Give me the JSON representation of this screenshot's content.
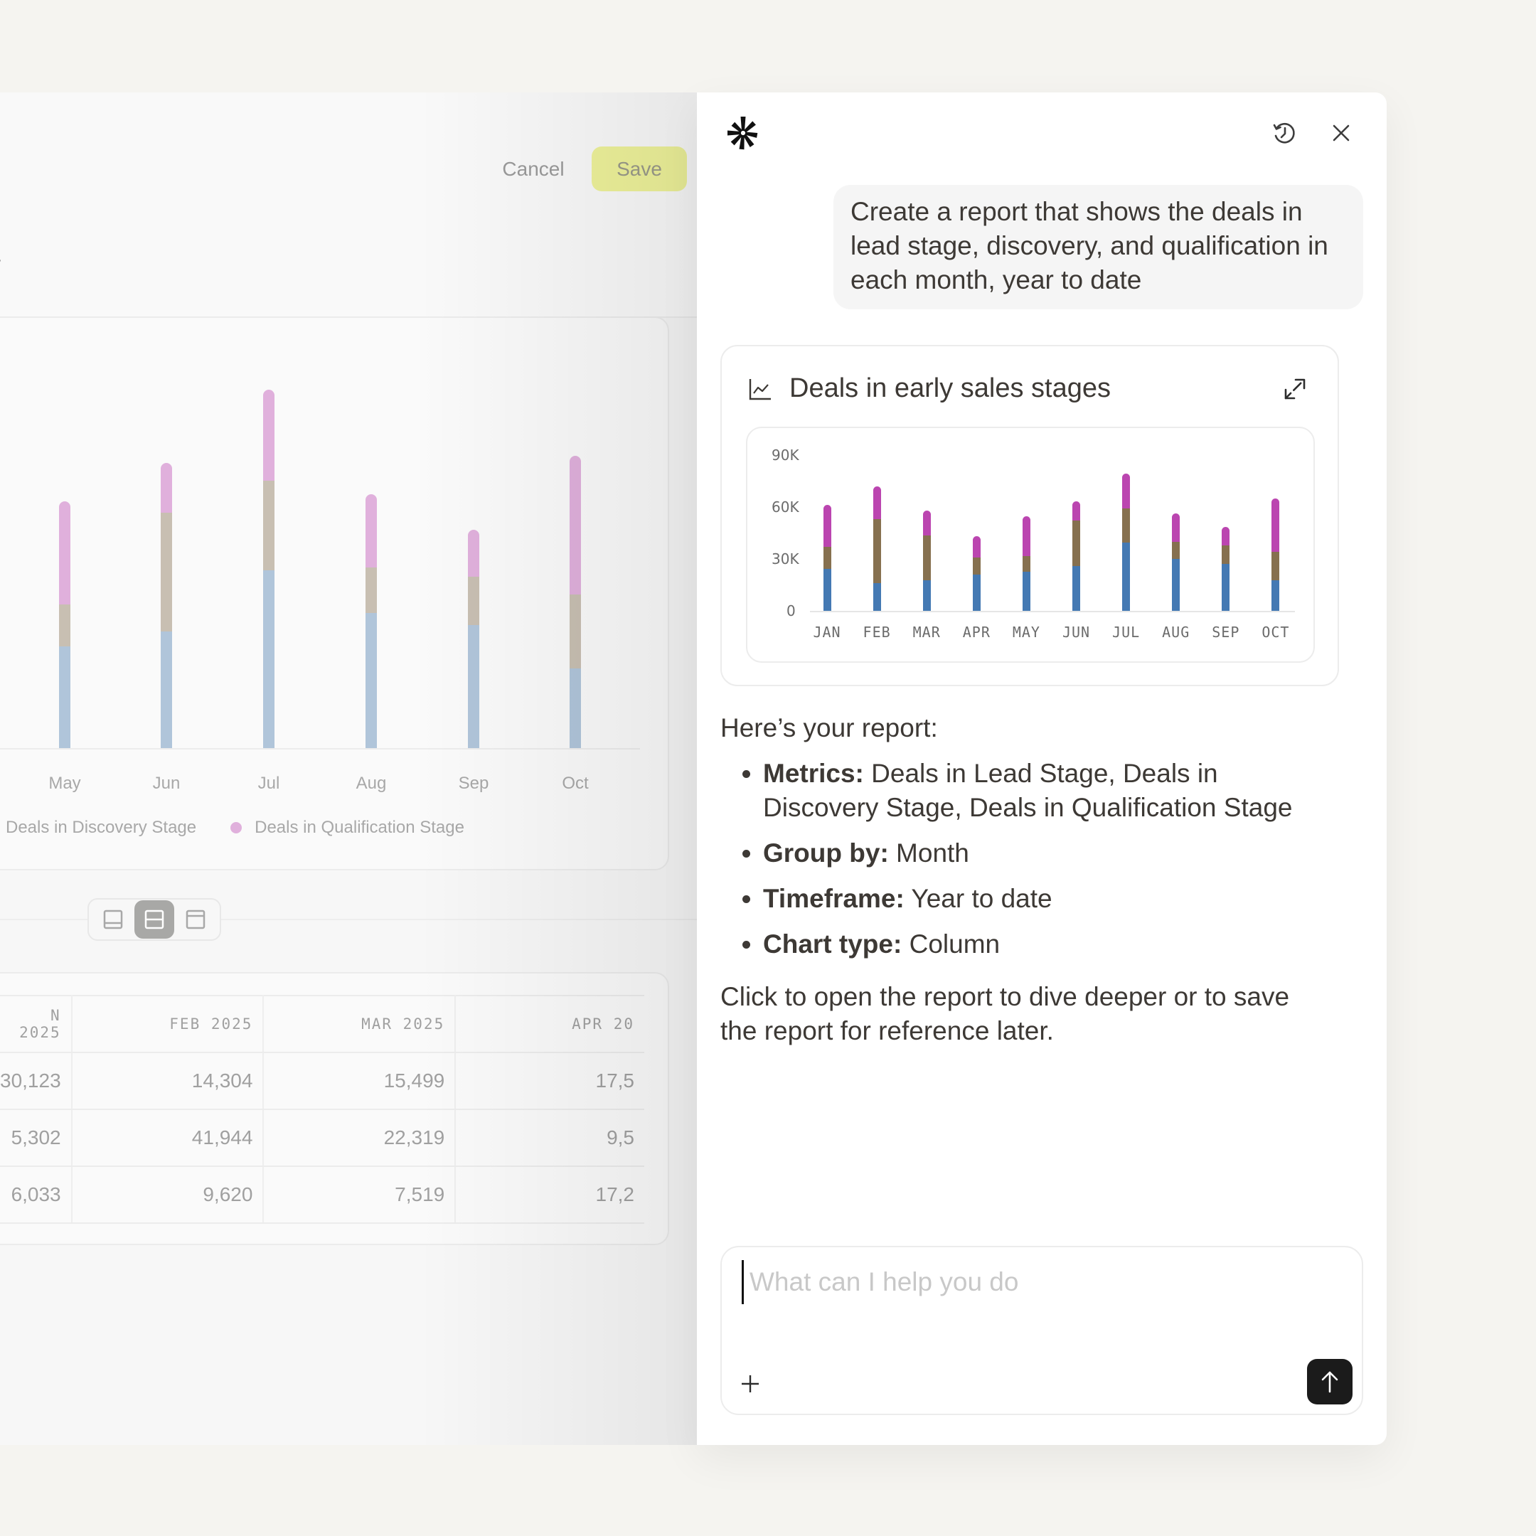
{
  "background_app": {
    "header": {
      "cancel_label": "Cancel",
      "save_label": "Save",
      "save_color": "#eef29a"
    },
    "filter_label_partial": "r",
    "chart": {
      "months": [
        "May",
        "Jun",
        "Jul",
        "Aug",
        "Sep",
        "Oct"
      ],
      "legend": [
        {
          "label": "Deals in Discovery Stage",
          "color": "#c7beb1"
        },
        {
          "label": "Deals in Qualification Stage",
          "color": "#e0b0dc"
        }
      ]
    },
    "layout_toggle": {
      "options": [
        "layout-bottom-panel",
        "layout-split",
        "layout-top-panel"
      ],
      "active_index": 1
    },
    "table": {
      "columns": [
        "N 2025",
        "FEB 2025",
        "MAR 2025",
        "APR 20"
      ],
      "rows": [
        [
          "30,123",
          "14,304",
          "15,499",
          "17,5"
        ],
        [
          "5,302",
          "41,944",
          "22,319",
          "9,5"
        ],
        [
          "6,033",
          "9,620",
          "7,519",
          "17,2"
        ]
      ]
    }
  },
  "assistant": {
    "user_message": "Create a report that shows the deals in lead stage, discovery, and qualification in each month, year to date",
    "report_card": {
      "title": "Deals in early sales stages",
      "y_ticks": [
        "90K",
        "60K",
        "30K",
        "0"
      ],
      "x_ticks": [
        "JAN",
        "FEB",
        "MAR",
        "APR",
        "MAY",
        "JUN",
        "JUL",
        "AUG",
        "SEP",
        "OCT"
      ]
    },
    "response": {
      "intro": "Here’s your report:",
      "items": [
        {
          "label": "Metrics:",
          "value": " Deals in Lead Stage, Deals in Discovery Stage, Deals in Qualification Stage"
        },
        {
          "label": "Group by:",
          "value": " Month"
        },
        {
          "label": "Timeframe:",
          "value": " Year to date"
        },
        {
          "label": "Chart type:",
          "value": " Column"
        }
      ],
      "closing": "Click to open the report to dive deeper or to save the report for reference later."
    },
    "input": {
      "placeholder": "What can I help you do",
      "value": ""
    }
  },
  "chart_data": {
    "type": "bar",
    "stacked": true,
    "title": "Deals in early sales stages",
    "xlabel": "",
    "ylabel": "",
    "categories": [
      "JAN",
      "FEB",
      "MAR",
      "APR",
      "MAY",
      "JUN",
      "JUL",
      "AUG",
      "SEP",
      "OCT"
    ],
    "series": [
      {
        "name": "Deals in Lead Stage",
        "color": "#4479b3",
        "values": [
          24200,
          16000,
          17600,
          21100,
          22500,
          25900,
          39400,
          29900,
          27200,
          17600
        ]
      },
      {
        "name": "Deals in Discovery Stage",
        "color": "#86704f",
        "values": [
          12900,
          37000,
          26000,
          9600,
          9300,
          26300,
          19800,
          10100,
          10700,
          16500
        ]
      },
      {
        "name": "Deals in Qualification Stage",
        "color": "#bb45b0",
        "values": [
          24100,
          18800,
          14300,
          12600,
          22800,
          11000,
          20200,
          16200,
          10500,
          30700
        ]
      }
    ],
    "y_ticks": [
      0,
      30000,
      60000,
      90000
    ],
    "ylim": [
      0,
      90000
    ],
    "grid": false,
    "legend_position": "none"
  }
}
